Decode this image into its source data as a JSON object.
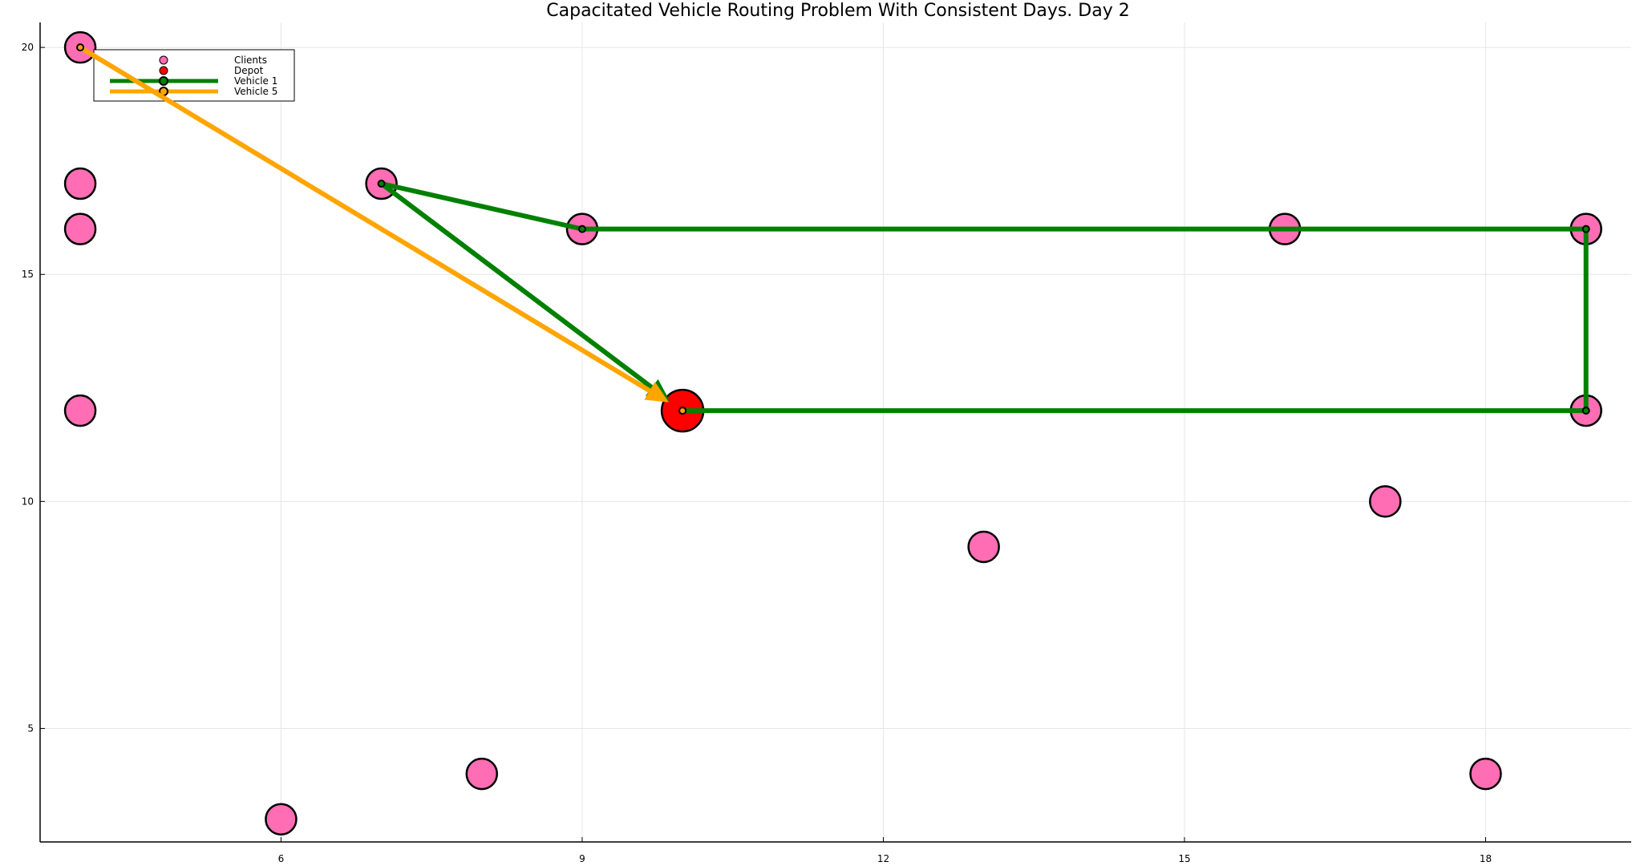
{
  "chart_data": {
    "type": "scatter",
    "title": "Capacitated Vehicle Routing Problem With Consistent Days. Day 2",
    "xlabel": "",
    "ylabel": "",
    "xlim": [
      3.6,
      19.45
    ],
    "ylim": [
      2.5,
      20.55
    ],
    "xticks": [
      6,
      9,
      12,
      15,
      18
    ],
    "yticks": [
      5,
      10,
      15,
      20
    ],
    "grid": true,
    "legend_position": "top-left",
    "clients": [
      {
        "x": 4,
        "y": 20
      },
      {
        "x": 4,
        "y": 17
      },
      {
        "x": 4,
        "y": 16
      },
      {
        "x": 4,
        "y": 12
      },
      {
        "x": 7,
        "y": 17
      },
      {
        "x": 9,
        "y": 16
      },
      {
        "x": 16,
        "y": 16
      },
      {
        "x": 19,
        "y": 16
      },
      {
        "x": 19,
        "y": 12
      },
      {
        "x": 17,
        "y": 10
      },
      {
        "x": 13,
        "y": 9
      },
      {
        "x": 8,
        "y": 4
      },
      {
        "x": 6,
        "y": 3
      },
      {
        "x": 18,
        "y": 4
      }
    ],
    "depot": {
      "x": 10,
      "y": 12
    },
    "routes": [
      {
        "name": "Vehicle 1",
        "color": "#008000",
        "path": [
          [
            10,
            12
          ],
          [
            19,
            12
          ],
          [
            19,
            16
          ],
          [
            9,
            16
          ],
          [
            7,
            17
          ],
          [
            10,
            12
          ]
        ]
      },
      {
        "name": "Vehicle 5",
        "color": "#ffa500",
        "path": [
          [
            4,
            20
          ],
          [
            10,
            12
          ]
        ]
      }
    ],
    "legend": [
      {
        "label": "Clients",
        "kind": "client"
      },
      {
        "label": "Depot",
        "kind": "depot"
      },
      {
        "label": "Vehicle 1",
        "kind": "route",
        "color": "#008000"
      },
      {
        "label": "Vehicle 5",
        "kind": "route",
        "color": "#ffa500"
      }
    ],
    "colors": {
      "client": "#ff6eb4",
      "depot": "#ff0000",
      "grid": "#e6e6e6"
    }
  }
}
